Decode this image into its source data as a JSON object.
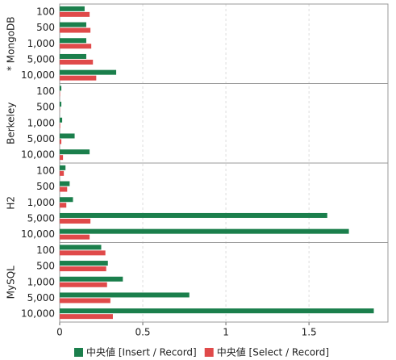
{
  "chart_data": {
    "type": "bar",
    "orientation": "horizontal",
    "xlim": [
      0,
      1.975
    ],
    "xticks": [
      0,
      0.5,
      1,
      1.5
    ],
    "grid": true,
    "legend": "bottom",
    "series": [
      {
        "name": "中央値 [Insert / Record]",
        "color": "#1b7f4c"
      },
      {
        "name": "中央値 [Select / Record]",
        "color": "#e04a4a"
      }
    ],
    "panels": [
      {
        "label": "* MongoDB",
        "categories": [
          "100",
          "500",
          "1,000",
          "5,000",
          "10,000"
        ],
        "series": [
          {
            "values": [
              0.15,
              0.16,
              0.16,
              0.16,
              0.34
            ]
          },
          {
            "values": [
              0.18,
              0.185,
              0.19,
              0.2,
              0.22
            ]
          }
        ]
      },
      {
        "label": "Berkeley",
        "categories": [
          "100",
          "500",
          "1,000",
          "5,000",
          "10,000"
        ],
        "series": [
          {
            "values": [
              0.01,
              0.01,
              0.015,
              0.09,
              0.18
            ]
          },
          {
            "values": [
              0.002,
              0.001,
              0.003,
              0.01,
              0.02
            ]
          }
        ]
      },
      {
        "label": "H2",
        "categories": [
          "100",
          "500",
          "1,000",
          "5,000",
          "10,000"
        ],
        "series": [
          {
            "values": [
              0.035,
              0.06,
              0.08,
              1.61,
              1.74
            ]
          },
          {
            "values": [
              0.025,
              0.045,
              0.04,
              0.185,
              0.18
            ]
          }
        ]
      },
      {
        "label": "MySQL",
        "categories": [
          "100",
          "500",
          "1,000",
          "5,000",
          "10,000"
        ],
        "series": [
          {
            "values": [
              0.25,
              0.29,
              0.38,
              0.78,
              1.89
            ]
          },
          {
            "values": [
              0.275,
              0.28,
              0.285,
              0.305,
              0.32
            ]
          }
        ]
      }
    ]
  }
}
